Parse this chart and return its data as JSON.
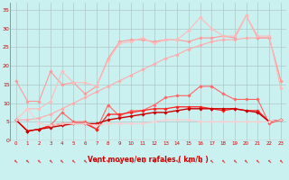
{
  "background_color": "#caf0f0",
  "grid_color": "#b0c8c8",
  "xlabel": "Vent moyen/en rafales ( km/h )",
  "x_ticks": [
    0,
    1,
    2,
    3,
    4,
    5,
    6,
    7,
    8,
    9,
    10,
    11,
    12,
    13,
    14,
    15,
    16,
    17,
    18,
    19,
    20,
    21,
    22,
    23
  ],
  "ylim": [
    0,
    37
  ],
  "yticks": [
    0,
    5,
    10,
    15,
    20,
    25,
    30,
    35
  ],
  "xlim": [
    -0.5,
    23.5
  ],
  "series": [
    {
      "color": "#ffaaaa",
      "linewidth": 0.8,
      "marker": "D",
      "markersize": 1.8,
      "x": [
        0,
        1,
        2,
        3,
        4,
        5,
        6,
        7,
        8,
        9,
        10,
        11,
        12,
        13,
        14,
        15,
        16,
        17,
        18,
        19,
        20,
        21,
        22,
        23
      ],
      "y": [
        5.5,
        5.5,
        6.0,
        7.0,
        8.5,
        10.0,
        11.5,
        13.0,
        14.5,
        16.0,
        17.5,
        19.0,
        20.5,
        22.0,
        23.0,
        24.5,
        25.5,
        26.5,
        27.0,
        27.0,
        27.5,
        27.5,
        27.5,
        16.0
      ]
    },
    {
      "color": "#ff9999",
      "linewidth": 0.8,
      "marker": "D",
      "markersize": 1.8,
      "x": [
        0,
        1,
        2,
        3,
        4,
        5,
        6,
        7,
        8,
        9,
        10,
        11,
        12,
        13,
        14,
        15,
        16,
        17,
        18,
        19,
        20,
        21,
        22,
        23
      ],
      "y": [
        16.0,
        10.5,
        10.5,
        18.5,
        15.0,
        15.5,
        12.5,
        14.5,
        22.0,
        26.5,
        27.0,
        27.0,
        26.5,
        27.0,
        27.0,
        26.5,
        27.5,
        27.5,
        28.0,
        27.5,
        33.5,
        27.5,
        27.5,
        16.0
      ]
    },
    {
      "color": "#ffbbbb",
      "linewidth": 0.8,
      "marker": "D",
      "markersize": 1.8,
      "x": [
        0,
        1,
        2,
        3,
        4,
        5,
        6,
        7,
        8,
        9,
        10,
        11,
        12,
        13,
        14,
        15,
        16,
        17,
        18,
        19,
        20,
        21,
        22,
        23
      ],
      "y": [
        5.5,
        8.5,
        8.5,
        10.5,
        18.5,
        15.5,
        15.5,
        14.5,
        21.5,
        26.0,
        26.5,
        27.5,
        26.0,
        27.0,
        27.0,
        29.5,
        33.0,
        30.0,
        28.0,
        28.0,
        33.5,
        28.0,
        28.0,
        14.0
      ]
    },
    {
      "color": "#ff6666",
      "linewidth": 0.8,
      "marker": "D",
      "markersize": 1.8,
      "x": [
        0,
        1,
        2,
        3,
        4,
        5,
        6,
        7,
        8,
        9,
        10,
        11,
        12,
        13,
        14,
        15,
        16,
        17,
        18,
        19,
        20,
        21,
        22,
        23
      ],
      "y": [
        5.5,
        2.5,
        3.0,
        4.0,
        7.5,
        5.0,
        5.0,
        3.0,
        9.5,
        6.5,
        8.0,
        8.0,
        9.5,
        11.5,
        12.0,
        12.0,
        14.5,
        14.5,
        12.5,
        11.0,
        11.0,
        11.0,
        4.5,
        5.5
      ]
    },
    {
      "color": "#ff2222",
      "linewidth": 0.9,
      "marker": "D",
      "markersize": 1.8,
      "x": [
        0,
        1,
        2,
        3,
        4,
        5,
        6,
        7,
        8,
        9,
        10,
        11,
        12,
        13,
        14,
        15,
        16,
        17,
        18,
        19,
        20,
        21,
        22,
        23
      ],
      "y": [
        5.5,
        2.5,
        3.0,
        4.0,
        4.5,
        4.5,
        4.5,
        3.0,
        7.0,
        7.0,
        7.5,
        8.0,
        8.5,
        8.5,
        9.0,
        9.0,
        9.0,
        8.5,
        8.0,
        8.5,
        8.0,
        8.0,
        5.0,
        5.5
      ]
    },
    {
      "color": "#cc0000",
      "linewidth": 1.0,
      "marker": "D",
      "markersize": 1.8,
      "x": [
        0,
        1,
        2,
        3,
        4,
        5,
        6,
        7,
        8,
        9,
        10,
        11,
        12,
        13,
        14,
        15,
        16,
        17,
        18,
        19,
        20,
        21,
        22,
        23
      ],
      "y": [
        5.5,
        2.5,
        3.0,
        3.5,
        4.0,
        4.5,
        4.5,
        4.5,
        5.5,
        6.0,
        6.5,
        7.0,
        7.5,
        7.5,
        8.0,
        8.5,
        8.5,
        8.5,
        8.5,
        8.5,
        8.0,
        7.5,
        5.0,
        5.5
      ]
    },
    {
      "color": "#ffcccc",
      "linewidth": 0.8,
      "marker": "D",
      "markersize": 1.8,
      "x": [
        0,
        1,
        2,
        3,
        4,
        5,
        6,
        7,
        8,
        9,
        10,
        11,
        12,
        13,
        14,
        15,
        16,
        17,
        18,
        19,
        20,
        21,
        22,
        23
      ],
      "y": [
        5.5,
        8.5,
        4.5,
        4.0,
        4.5,
        4.5,
        4.5,
        4.0,
        4.5,
        4.5,
        4.5,
        4.5,
        5.0,
        5.5,
        5.5,
        5.5,
        5.0,
        5.0,
        5.0,
        5.0,
        5.0,
        5.0,
        5.0,
        5.5
      ]
    }
  ],
  "arrow_color": "#dd0000",
  "xlabel_color": "#cc0000",
  "tick_color": "#cc0000"
}
